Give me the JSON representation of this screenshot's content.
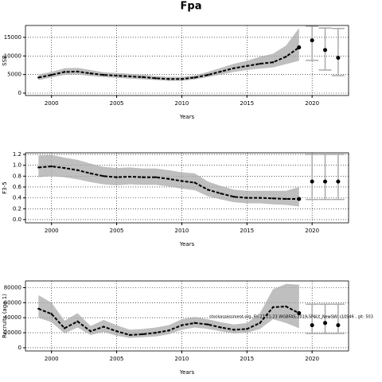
{
  "title": "Fpa",
  "annotation": "stockassessment.org, Fri 27 21:23  WGBFAS-2019-SPALY_NewSW: r10946 , git: 503",
  "chart_data": [
    {
      "type": "line",
      "ylabel": "SSB",
      "xlabel": "Years",
      "xlim": [
        1998,
        2022.8
      ],
      "xticks": [
        2000,
        2005,
        2010,
        2015,
        2020
      ],
      "ylim": [
        -640,
        18200
      ],
      "yticks": [
        0,
        5000,
        10000,
        15000
      ],
      "grid": true,
      "color": "#000000",
      "band_color": "#aaaaaa",
      "x": [
        1999,
        2000,
        2001,
        2002,
        2003,
        2004,
        2005,
        2006,
        2007,
        2008,
        2009,
        2010,
        2011,
        2012,
        2013,
        2014,
        2015,
        2016,
        2017,
        2018,
        2019
      ],
      "values": [
        4200,
        4900,
        5700,
        5800,
        5300,
        4900,
        4700,
        4500,
        4300,
        4000,
        3800,
        3800,
        4200,
        4900,
        5800,
        6700,
        7300,
        7900,
        8300,
        9800,
        12300
      ],
      "lower": [
        3500,
        4200,
        4900,
        5000,
        4600,
        4300,
        4100,
        3900,
        3700,
        3500,
        3300,
        3300,
        3700,
        4300,
        5000,
        5700,
        6200,
        6600,
        6900,
        7800,
        8700
      ],
      "upper": [
        5000,
        5700,
        6700,
        6800,
        6200,
        5600,
        5400,
        5200,
        5000,
        4600,
        4400,
        4400,
        4800,
        5700,
        6800,
        7900,
        8700,
        9800,
        10600,
        12800,
        17500
      ],
      "forecast": {
        "x": [
          2020,
          2021,
          2022
        ],
        "values": [
          14200,
          11600,
          9500
        ],
        "lower": [
          8800,
          6200,
          4700
        ],
        "upper": [
          18000,
          17500,
          17400
        ]
      }
    },
    {
      "type": "line",
      "ylabel": "F3-5",
      "xlabel": "Years",
      "xlim": [
        1998,
        2022.8
      ],
      "xticks": [
        2000,
        2005,
        2010,
        2015,
        2020
      ],
      "ylim": [
        -0.06,
        1.23
      ],
      "yticks": [
        {
          "value": 0,
          "label": "0.0"
        },
        0.2,
        0.4,
        0.6,
        0.8,
        {
          "value": 1,
          "label": "1.0"
        },
        1.2
      ],
      "grid": true,
      "color": "#000000",
      "band_color": "#aaaaaa",
      "x": [
        1999,
        2000,
        2001,
        2002,
        2003,
        2004,
        2005,
        2006,
        2007,
        2008,
        2009,
        2010,
        2011,
        2012,
        2013,
        2014,
        2015,
        2016,
        2017,
        2018,
        2019
      ],
      "values": [
        0.96,
        0.98,
        0.95,
        0.91,
        0.85,
        0.8,
        0.78,
        0.79,
        0.78,
        0.78,
        0.75,
        0.71,
        0.68,
        0.55,
        0.48,
        0.42,
        0.4,
        0.4,
        0.39,
        0.38,
        0.38
      ],
      "lower": [
        0.78,
        0.8,
        0.78,
        0.74,
        0.69,
        0.65,
        0.63,
        0.65,
        0.64,
        0.64,
        0.61,
        0.57,
        0.54,
        0.43,
        0.37,
        0.32,
        0.3,
        0.3,
        0.28,
        0.27,
        0.24
      ],
      "upper": [
        1.18,
        1.19,
        1.14,
        1.1,
        1.03,
        0.97,
        0.95,
        0.96,
        0.94,
        0.94,
        0.91,
        0.87,
        0.85,
        0.7,
        0.62,
        0.55,
        0.53,
        0.53,
        0.53,
        0.53,
        0.6
      ],
      "forecast": {
        "x": [
          2020,
          2021,
          2022
        ],
        "values": [
          0.7,
          0.7,
          0.7
        ],
        "lower": [
          0.37,
          0.37,
          0.37
        ],
        "upper": [
          1.2,
          1.2,
          1.2
        ]
      }
    },
    {
      "type": "line",
      "ylabel": "Recruits (age 1)",
      "xlabel": "Years",
      "xlim": [
        1998,
        2022.8
      ],
      "xticks": [
        2000,
        2005,
        2010,
        2015,
        2020
      ],
      "ylim": [
        -4300,
        89000
      ],
      "yticks": [
        0,
        20000,
        40000,
        60000,
        80000
      ],
      "grid": true,
      "color": "#000000",
      "band_color": "#aaaaaa",
      "x": [
        1999,
        2000,
        2001,
        2002,
        2003,
        2004,
        2005,
        2006,
        2007,
        2008,
        2009,
        2010,
        2011,
        2012,
        2013,
        2014,
        2015,
        2016,
        2017,
        2018,
        2019
      ],
      "values": [
        52000,
        45000,
        26000,
        35000,
        22000,
        28000,
        22000,
        17000,
        18000,
        20000,
        23000,
        30000,
        33000,
        31000,
        27000,
        24000,
        25000,
        33000,
        54000,
        55000,
        46000
      ],
      "lower": [
        40000,
        34000,
        19000,
        27000,
        17000,
        21000,
        16000,
        13000,
        14000,
        15000,
        18000,
        24000,
        27000,
        25000,
        22000,
        19000,
        20000,
        25000,
        38000,
        33000,
        26000
      ],
      "upper": [
        70000,
        60000,
        36000,
        46000,
        29000,
        37000,
        30000,
        24000,
        25000,
        27000,
        30000,
        38000,
        41000,
        38000,
        34000,
        31000,
        33000,
        46000,
        78000,
        85000,
        84000
      ],
      "forecast": {
        "x": [
          2020,
          2021,
          2022
        ],
        "values": [
          30000,
          33000,
          30000
        ],
        "lower": [
          19000,
          19000,
          19000
        ],
        "upper": [
          58000,
          58000,
          58000
        ]
      }
    }
  ]
}
